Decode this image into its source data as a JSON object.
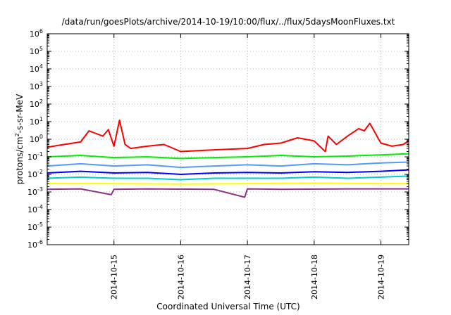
{
  "chart_data": {
    "type": "line",
    "title": "/data/run/goesPlots/archive/2014-10-19/10:00/flux/../flux/5daysMoonFluxes.txt",
    "xlabel": "Coordinated Universal Time (UTC)",
    "ylabel": {
      "base": "protons/cm",
      "sup": "2",
      "rest": "-s-sr-MeV"
    },
    "x_scale": "time",
    "xlim": [
      "2014-10-14T00:00",
      "2014-10-19T10:00"
    ],
    "x_ticks": [
      "2014-10-15",
      "2014-10-16",
      "2014-10-17",
      "2014-10-18",
      "2014-10-19"
    ],
    "y_scale": "log",
    "ylim": [
      1e-06,
      1000000.0
    ],
    "y_ticks": [
      {
        "value": 1e-06,
        "base": "10",
        "exp": "-6"
      },
      {
        "value": 1e-05,
        "base": "10",
        "exp": "-5"
      },
      {
        "value": 0.0001,
        "base": "10",
        "exp": "-4"
      },
      {
        "value": 0.001,
        "base": "10",
        "exp": "-3"
      },
      {
        "value": 0.01,
        "base": "10",
        "exp": "-2"
      },
      {
        "value": 0.1,
        "base": "10",
        "exp": "-1"
      },
      {
        "value": 1,
        "base": "10",
        "exp": "0"
      },
      {
        "value": 10,
        "base": "10",
        "exp": "1"
      },
      {
        "value": 100,
        "base": "10",
        "exp": "2"
      },
      {
        "value": 1000,
        "base": "10",
        "exp": "3"
      },
      {
        "value": 10000,
        "base": "10",
        "exp": "4"
      },
      {
        "value": 100000,
        "base": "10",
        "exp": "5"
      },
      {
        "value": 1000000,
        "base": "10",
        "exp": "6"
      }
    ],
    "grid": true,
    "series": [
      {
        "color": "#ff0000",
        "x": [
          "2014-10-14T00:00",
          "2014-10-14T06:00",
          "2014-10-14T12:00",
          "2014-10-14T15:00",
          "2014-10-14T18:00",
          "2014-10-14T20:00",
          "2014-10-14T22:00",
          "2014-10-15T00:00",
          "2014-10-15T02:00",
          "2014-10-15T04:00",
          "2014-10-15T06:00",
          "2014-10-15T12:00",
          "2014-10-15T18:00",
          "2014-10-16T00:00",
          "2014-10-16T12:00",
          "2014-10-17T00:00",
          "2014-10-17T06:00",
          "2014-10-17T12:00",
          "2014-10-17T18:00",
          "2014-10-18T00:00",
          "2014-10-18T04:00",
          "2014-10-18T05:00",
          "2014-10-18T08:00",
          "2014-10-18T12:00",
          "2014-10-18T16:00",
          "2014-10-18T18:00",
          "2014-10-18T20:00",
          "2014-10-19T00:00",
          "2014-10-19T04:00",
          "2014-10-19T08:00",
          "2014-10-19T10:00"
        ],
        "y": [
          0.35,
          0.5,
          0.7,
          3.0,
          2.0,
          1.5,
          3.5,
          0.4,
          12.0,
          0.5,
          0.3,
          0.4,
          0.5,
          0.2,
          0.25,
          0.3,
          0.5,
          0.6,
          1.2,
          0.8,
          0.2,
          1.5,
          0.5,
          1.5,
          4.0,
          3.0,
          8.0,
          0.6,
          0.4,
          0.5,
          0.8
        ]
      },
      {
        "color": "#00ee00",
        "x": [
          "2014-10-14T00:00",
          "2014-10-14T12:00",
          "2014-10-15T00:00",
          "2014-10-15T12:00",
          "2014-10-16T00:00",
          "2014-10-16T12:00",
          "2014-10-17T00:00",
          "2014-10-17T12:00",
          "2014-10-18T00:00",
          "2014-10-18T12:00",
          "2014-10-19T00:00",
          "2014-10-19T10:00"
        ],
        "y": [
          0.1,
          0.12,
          0.09,
          0.1,
          0.08,
          0.09,
          0.1,
          0.12,
          0.1,
          0.11,
          0.13,
          0.15
        ]
      },
      {
        "color": "#5599ff",
        "x": [
          "2014-10-14T00:00",
          "2014-10-14T12:00",
          "2014-10-15T00:00",
          "2014-10-15T12:00",
          "2014-10-16T00:00",
          "2014-10-16T12:00",
          "2014-10-17T00:00",
          "2014-10-17T12:00",
          "2014-10-18T00:00",
          "2014-10-18T12:00",
          "2014-10-19T00:00",
          "2014-10-19T10:00"
        ],
        "y": [
          0.03,
          0.04,
          0.03,
          0.035,
          0.025,
          0.03,
          0.035,
          0.03,
          0.04,
          0.035,
          0.045,
          0.05
        ]
      },
      {
        "color": "#0000ff",
        "x": [
          "2014-10-14T00:00",
          "2014-10-14T12:00",
          "2014-10-15T00:00",
          "2014-10-15T12:00",
          "2014-10-16T00:00",
          "2014-10-16T12:00",
          "2014-10-17T00:00",
          "2014-10-17T12:00",
          "2014-10-18T00:00",
          "2014-10-18T12:00",
          "2014-10-19T00:00",
          "2014-10-19T10:00"
        ],
        "y": [
          0.012,
          0.015,
          0.012,
          0.013,
          0.01,
          0.012,
          0.013,
          0.012,
          0.014,
          0.013,
          0.015,
          0.018
        ]
      },
      {
        "color": "#00cccc",
        "x": [
          "2014-10-14T00:00",
          "2014-10-14T12:00",
          "2014-10-15T00:00",
          "2014-10-15T12:00",
          "2014-10-16T00:00",
          "2014-10-16T12:00",
          "2014-10-17T00:00",
          "2014-10-17T12:00",
          "2014-10-18T00:00",
          "2014-10-18T12:00",
          "2014-10-19T00:00",
          "2014-10-19T10:00"
        ],
        "y": [
          0.006,
          0.007,
          0.006,
          0.006,
          0.005,
          0.006,
          0.006,
          0.006,
          0.007,
          0.006,
          0.007,
          0.008
        ]
      },
      {
        "color": "#ffff00",
        "x": [
          "2014-10-14T00:00",
          "2014-10-15T00:00",
          "2014-10-16T00:00",
          "2014-10-17T00:00",
          "2014-10-18T00:00",
          "2014-10-19T00:00",
          "2014-10-19T10:00"
        ],
        "y": [
          0.003,
          0.003,
          0.0028,
          0.003,
          0.0032,
          0.003,
          0.003
        ]
      },
      {
        "color": "#883388",
        "x": [
          "2014-10-14T00:00",
          "2014-10-14T12:00",
          "2014-10-14T23:00",
          "2014-10-15T00:00",
          "2014-10-15T12:00",
          "2014-10-16T12:00",
          "2014-10-16T23:00",
          "2014-10-17T00:00",
          "2014-10-17T12:00",
          "2014-10-18T12:00",
          "2014-10-19T10:00"
        ],
        "y": [
          0.0014,
          0.0015,
          0.0007,
          0.0014,
          0.0015,
          0.0014,
          0.0005,
          0.0015,
          0.0014,
          0.0015,
          0.0015
        ]
      }
    ]
  }
}
